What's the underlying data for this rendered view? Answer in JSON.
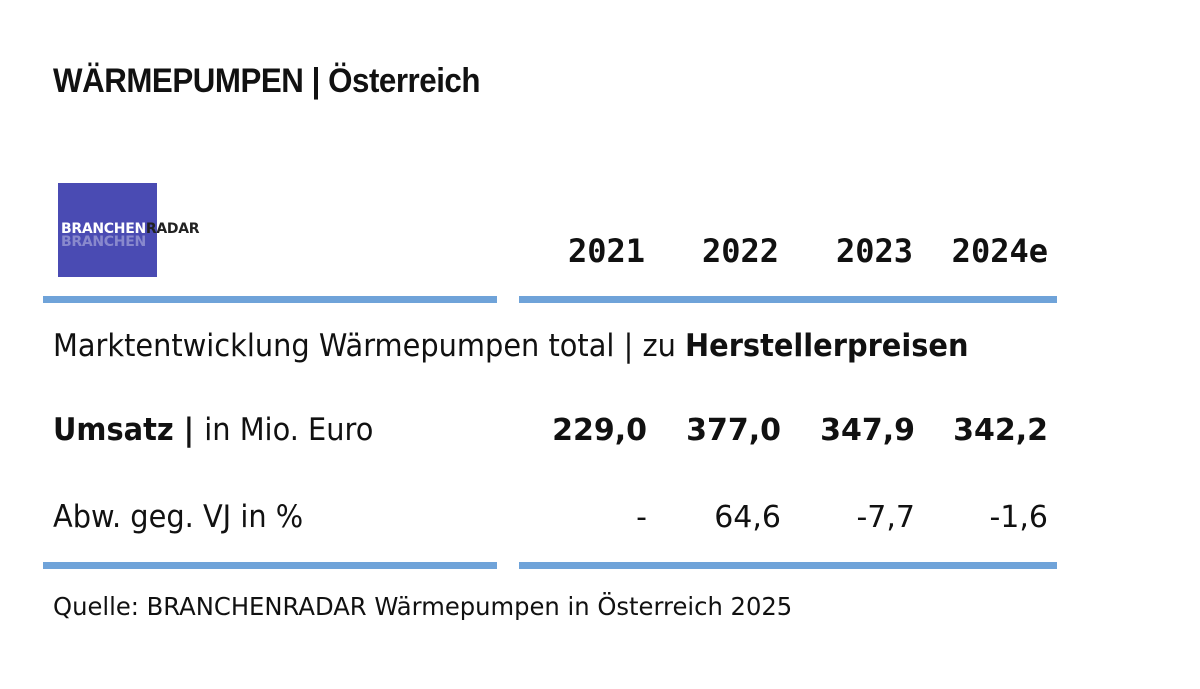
{
  "title": "WÄRMEPUMPEN | Österreich",
  "logo": {
    "text_light": "BRANCHEN",
    "text_dark": "RADAR",
    "color": "#4a4bb3"
  },
  "chart_data": {
    "type": "table",
    "columns": [
      "2021",
      "2022",
      "2023",
      "2024e"
    ],
    "section_title_regular": "Marktentwicklung Wärmepumpen total | zu ",
    "section_title_bold": "Herstellerpreisen",
    "rows": [
      {
        "label_bold": "Umsatz | ",
        "label_regular": "in Mio. Euro",
        "values": [
          "229,0",
          "377,0",
          "347,9",
          "342,2"
        ]
      },
      {
        "label_bold": "",
        "label_regular": "Abw. geg. VJ in %",
        "values": [
          "-",
          "64,6",
          "-7,7",
          "-1,6"
        ]
      }
    ],
    "rule_color": "#6fa3d9"
  },
  "source": "Quelle: BRANCHENRADAR Wärmepumpen in Österreich 2025"
}
